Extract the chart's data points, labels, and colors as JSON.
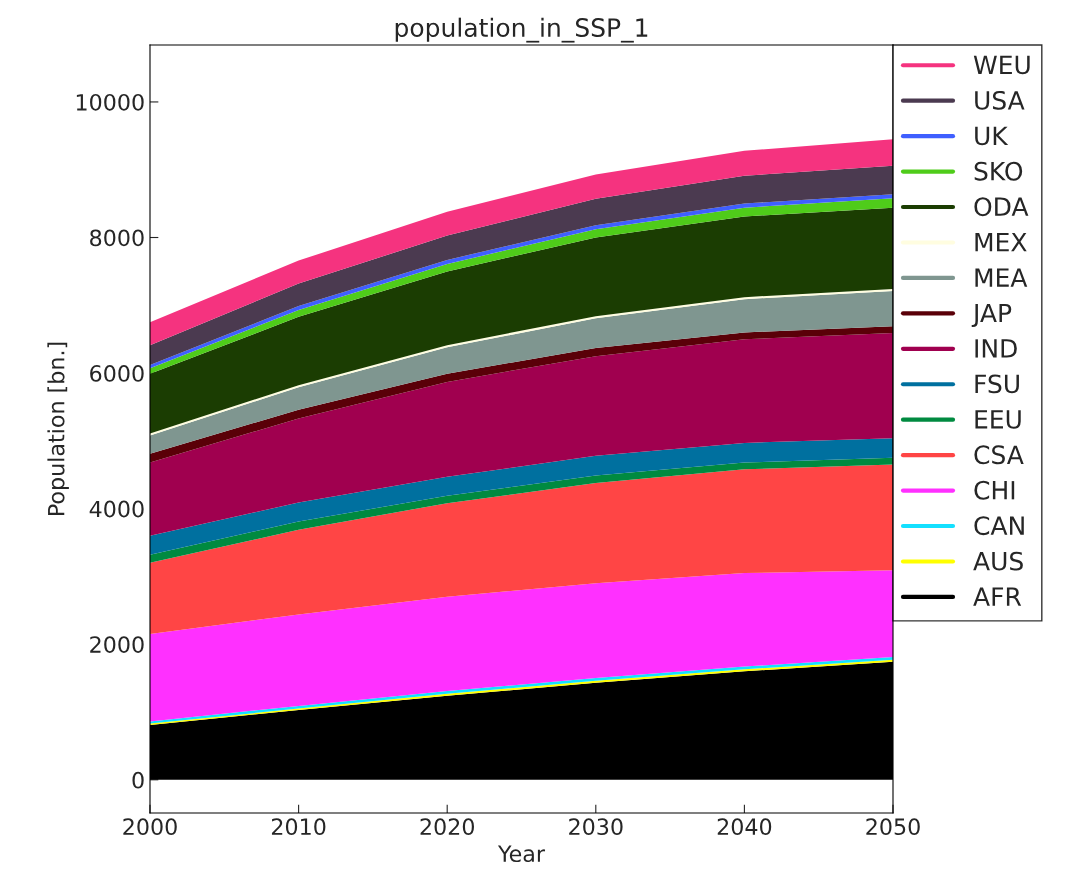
{
  "chart_data": {
    "type": "area",
    "stacked": true,
    "title": "population_in_SSP_1",
    "xlabel": "Year",
    "ylabel": "Population [bn.]",
    "x": [
      2000,
      2010,
      2020,
      2030,
      2040,
      2050
    ],
    "xlim": [
      2000,
      2050
    ],
    "xticks": [
      2000,
      2010,
      2020,
      2030,
      2040,
      2050
    ],
    "ylim": [
      -490,
      10840
    ],
    "yticks": [
      0,
      2000,
      4000,
      6000,
      8000,
      10000
    ],
    "grid": false,
    "legend": "right",
    "series": [
      {
        "name": "AFR",
        "color": "#000000",
        "values": [
          810,
          1030,
          1240,
          1430,
          1600,
          1740
        ]
      },
      {
        "name": "AUS",
        "color": "#ffff00",
        "values": [
          20,
          20,
          30,
          30,
          30,
          30
        ]
      },
      {
        "name": "CAN",
        "color": "#14e0ff",
        "values": [
          30,
          40,
          40,
          40,
          40,
          40
        ]
      },
      {
        "name": "CHI",
        "color": "#ff30ff",
        "values": [
          1290,
          1350,
          1390,
          1400,
          1380,
          1280
        ]
      },
      {
        "name": "CSA",
        "color": "#ff4545",
        "values": [
          1050,
          1250,
          1380,
          1480,
          1530,
          1560
        ]
      },
      {
        "name": "EEU",
        "color": "#008a40",
        "values": [
          120,
          120,
          110,
          110,
          100,
          100
        ]
      },
      {
        "name": "FSU",
        "color": "#00709f",
        "values": [
          280,
          280,
          280,
          290,
          290,
          290
        ]
      },
      {
        "name": "IND",
        "color": "#a0004f",
        "values": [
          1080,
          1240,
          1400,
          1470,
          1530,
          1550
        ]
      },
      {
        "name": "JAP",
        "color": "#5a0008",
        "values": [
          130,
          130,
          120,
          120,
          100,
          100
        ]
      },
      {
        "name": "MEA",
        "color": "#7f9690",
        "values": [
          270,
          330,
          390,
          440,
          490,
          520
        ]
      },
      {
        "name": "MEX",
        "color": "#fffde0",
        "values": [
          30,
          30,
          30,
          30,
          30,
          30
        ]
      },
      {
        "name": "ODA",
        "color": "#1b3d02",
        "values": [
          880,
          1010,
          1090,
          1160,
          1190,
          1200
        ]
      },
      {
        "name": "SKO",
        "color": "#4fcc1a",
        "values": [
          80,
          100,
          110,
          120,
          130,
          140
        ]
      },
      {
        "name": "UK",
        "color": "#3f5fff",
        "values": [
          50,
          60,
          60,
          60,
          60,
          60
        ]
      },
      {
        "name": "USA",
        "color": "#4b3a50",
        "values": [
          290,
          330,
          360,
          390,
          410,
          420
        ]
      },
      {
        "name": "WEU",
        "color": "#f5337f",
        "values": [
          340,
          340,
          350,
          360,
          370,
          390
        ]
      }
    ]
  }
}
